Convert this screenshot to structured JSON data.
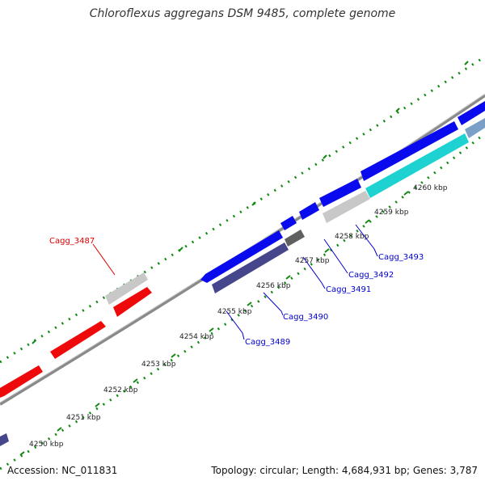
{
  "title": "Chloroflexus aggregans DSM 9485, complete genome",
  "accession_text": "Accession: NC_011831",
  "summary_text": "Topology: circular; Length: 4,684,931 bp; Genes: 3,787",
  "colors": {
    "backbone": "#8f8f8f",
    "tick_dots": "#118811",
    "forward_cds": "#0a0aee",
    "reverse_cds": "#ee0a0a",
    "rna": "#c8c8c8",
    "navy_gene": "#46468c",
    "cyan_gene": "#1ed2d2",
    "dark_gene": "#606060",
    "label_blue": "#0000cc",
    "label_red": "#dd0000"
  },
  "ticks": [
    "4250 kbp",
    "4251 kbp",
    "4252 kbp",
    "4253 kbp",
    "4254 kbp",
    "4255 kbp",
    "4256 kbp",
    "4257 kbp",
    "4258 kbp",
    "4259 kbp",
    "4260 kbp"
  ],
  "gene_labels": [
    {
      "text": "Cagg_3487",
      "color": "red"
    },
    {
      "text": "Cagg_3489",
      "color": "blue"
    },
    {
      "text": "Cagg_3490",
      "color": "blue"
    },
    {
      "text": "Cagg_3491",
      "color": "blue"
    },
    {
      "text": "Cagg_3492",
      "color": "blue"
    },
    {
      "text": "Cagg_3493",
      "color": "blue"
    }
  ]
}
